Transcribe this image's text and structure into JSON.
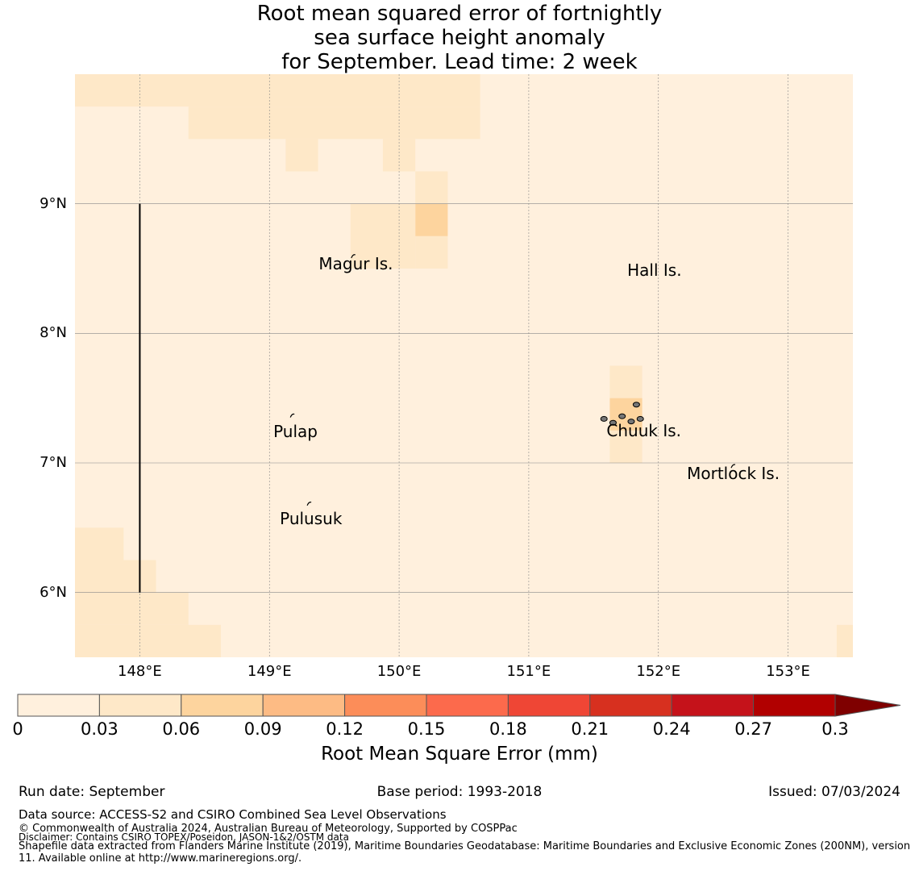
{
  "title_lines": [
    "Root mean squared error of fortnightly",
    "sea surface height anomaly",
    "for September. Lead time: 2 week"
  ],
  "map": {
    "lat_ticks": [
      {
        "label": "9°N",
        "value": 9
      },
      {
        "label": "8°N",
        "value": 8
      },
      {
        "label": "7°N",
        "value": 7
      },
      {
        "label": "6°N",
        "value": 6
      }
    ],
    "lon_ticks": [
      {
        "label": "148°E",
        "value": 148
      },
      {
        "label": "149°E",
        "value": 149
      },
      {
        "label": "150°E",
        "value": 150
      },
      {
        "label": "151°E",
        "value": 151
      },
      {
        "label": "152°E",
        "value": 152
      },
      {
        "label": "153°E",
        "value": 153
      }
    ],
    "extent": {
      "lon_min": 147.5,
      "lon_max": 153.5,
      "lat_min": 5.5,
      "lat_max": 10.0
    },
    "background_rmse": 0.02,
    "cells": [
      {
        "lon0": 147.5,
        "lon1": 150.625,
        "lat0": 9.75,
        "lat1": 10.0,
        "rmse": 0.04
      },
      {
        "lon0": 148.375,
        "lon1": 150.625,
        "lat0": 9.5,
        "lat1": 9.75,
        "rmse": 0.04
      },
      {
        "lon0": 149.125,
        "lon1": 149.375,
        "lat0": 9.25,
        "lat1": 9.5,
        "rmse": 0.04
      },
      {
        "lon0": 149.875,
        "lon1": 150.125,
        "lat0": 9.25,
        "lat1": 9.5,
        "rmse": 0.04
      },
      {
        "lon0": 150.125,
        "lon1": 150.375,
        "lat0": 8.75,
        "lat1": 9.25,
        "rmse": 0.04
      },
      {
        "lon0": 150.125,
        "lon1": 150.375,
        "lat0": 8.75,
        "lat1": 9.0,
        "rmse": 0.06
      },
      {
        "lon0": 149.625,
        "lon1": 150.125,
        "lat0": 8.5,
        "lat1": 9.0,
        "rmse": 0.04
      },
      {
        "lon0": 150.125,
        "lon1": 150.375,
        "lat0": 8.5,
        "lat1": 8.75,
        "rmse": 0.04
      },
      {
        "lon0": 151.625,
        "lon1": 151.875,
        "lat0": 7.5,
        "lat1": 7.75,
        "rmse": 0.04
      },
      {
        "lon0": 151.625,
        "lon1": 151.875,
        "lat0": 7.25,
        "lat1": 7.5,
        "rmse": 0.06
      },
      {
        "lon0": 151.625,
        "lon1": 151.875,
        "lat0": 7.0,
        "lat1": 7.25,
        "rmse": 0.04
      },
      {
        "lon0": 147.5,
        "lon1": 147.875,
        "lat0": 6.25,
        "lat1": 6.5,
        "rmse": 0.04
      },
      {
        "lon0": 147.5,
        "lon1": 148.125,
        "lat0": 6.0,
        "lat1": 6.25,
        "rmse": 0.04
      },
      {
        "lon0": 147.5,
        "lon1": 148.375,
        "lat0": 5.75,
        "lat1": 6.0,
        "rmse": 0.04
      },
      {
        "lon0": 147.5,
        "lon1": 148.625,
        "lat0": 5.5,
        "lat1": 5.75,
        "rmse": 0.04
      },
      {
        "lon0": 153.375,
        "lon1": 153.5,
        "lat0": 5.5,
        "lat1": 5.75,
        "rmse": 0.04
      }
    ],
    "transect": {
      "lon": 148.0,
      "lat_from": 6.0,
      "lat_to": 9.0
    },
    "places": [
      {
        "name": "Magur Is.",
        "lon": 149.38,
        "lat": 8.54
      },
      {
        "name": "Hall Is.",
        "lon": 151.76,
        "lat": 8.49
      },
      {
        "name": "Pulap",
        "lon": 149.03,
        "lat": 7.24
      },
      {
        "name": "Chuuk Is.",
        "lon": 151.6,
        "lat": 7.25
      },
      {
        "name": "Mortlock Is.",
        "lon": 152.22,
        "lat": 6.92
      },
      {
        "name": "Pulusuk",
        "lon": 149.08,
        "lat": 6.57
      }
    ],
    "islands": [
      {
        "lon": 149.65,
        "lat": 8.6
      },
      {
        "lon": 149.18,
        "lat": 7.37
      },
      {
        "lon": 149.31,
        "lat": 6.69
      },
      {
        "lon": 152.58,
        "lat": 6.98
      }
    ]
  },
  "colorbar": {
    "label": "Root Mean Square Error (mm)",
    "ticks": [
      "0",
      "0.03",
      "0.06",
      "0.09",
      "0.12",
      "0.15",
      "0.18",
      "0.21",
      "0.24",
      "0.27",
      "0.3"
    ],
    "colors": [
      "#fff0dd",
      "#fee8c8",
      "#fdd49e",
      "#fdbb84",
      "#fc8d59",
      "#fc6a4c",
      "#ef4635",
      "#d7301f",
      "#c5121a",
      "#b10000"
    ],
    "over_color": "#7f0000"
  },
  "footer": {
    "run_date": "Run date: September",
    "base_period": "Base period: 1993-2018",
    "issued": "Issued: 07/03/2024",
    "data_source": "Data source: ACCESS-S2 and CSIRO Combined Sea Level Observations",
    "copyright": "© Commonwealth of Australia 2024, Australian Bureau of Meteorology, Supported by COSPPac",
    "disclaimer": "Disclaimer: Contains CSIRO TOPEX/Poseidon, JASON-1&2/OSTM data",
    "shapefile": "Shapefile data extracted from Flanders Marine Institute (2019), Maritime Boundaries Geodatabase: Maritime Boundaries and Exclusive Economic Zones (200NM), version 11. Available online at http://www.marineregions.org/."
  }
}
